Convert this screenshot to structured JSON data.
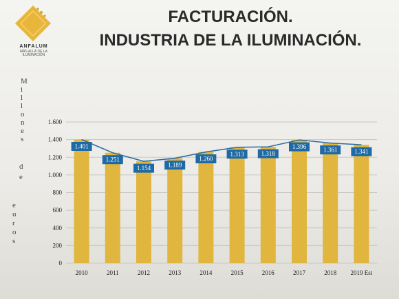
{
  "logo": {
    "name": "ANFALUM",
    "tagline": "MÁS ALLÁ DE LA ILUMINACIÓN",
    "color": "#e8b63a"
  },
  "title": {
    "line1": "FACTURACIÓN.",
    "line2": "INDUSTRIA DE LA ILUMINACIÓN."
  },
  "chart_data": {
    "type": "bar",
    "ylabel": "Millones de euros",
    "categories": [
      "2010",
      "2011",
      "2012",
      "2013",
      "2014",
      "2015",
      "2016",
      "2017",
      "2018",
      "2019 Est"
    ],
    "values": [
      1401,
      1251,
      1154,
      1189,
      1260,
      1313,
      1318,
      1396,
      1361,
      1341
    ],
    "data_labels": [
      "1.401",
      "1.251",
      "1.154",
      "1.189",
      "1.260",
      "1.313",
      "1.318",
      "1.396",
      "1.361",
      "1.341"
    ],
    "line_overlay": true,
    "yticks": [
      {
        "value": 0,
        "label": "0"
      },
      {
        "value": 200,
        "label": "200"
      },
      {
        "value": 400,
        "label": "400"
      },
      {
        "value": 600,
        "label": "600"
      },
      {
        "value": 800,
        "label": "800"
      },
      {
        "value": 1000,
        "label": "1.000"
      },
      {
        "value": 1200,
        "label": "1.200"
      },
      {
        "value": 1400,
        "label": "1.400"
      },
      {
        "value": 1600,
        "label": "1.600"
      }
    ],
    "ylim": [
      0,
      1600
    ],
    "grid": true,
    "colors": {
      "bar": "#e0b63f",
      "line": "#2f6fa3",
      "label_bg": "#1f6aa5",
      "grid": "#c9c7c0"
    }
  }
}
